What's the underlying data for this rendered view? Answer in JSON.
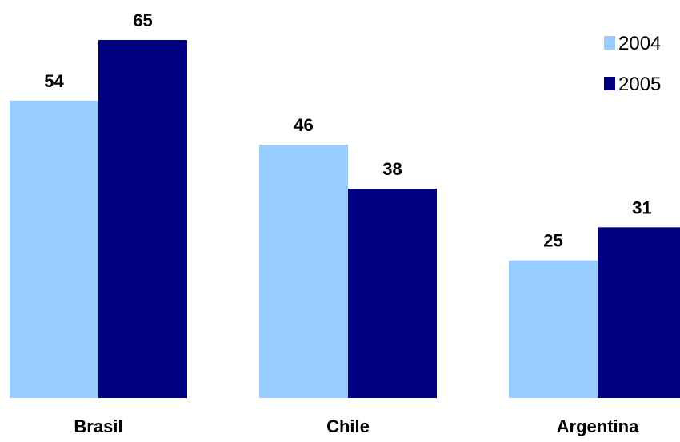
{
  "chart_data": {
    "type": "bar",
    "categories": [
      "Brasil",
      "Chile",
      "Argentina"
    ],
    "series": [
      {
        "name": "2004",
        "values": [
          54,
          46,
          25
        ],
        "color": "#99ccff"
      },
      {
        "name": "2005",
        "values": [
          65,
          38,
          31
        ],
        "color": "#000080"
      }
    ],
    "ylim": [
      0,
      65
    ],
    "grid": false,
    "legend": "top-right"
  }
}
